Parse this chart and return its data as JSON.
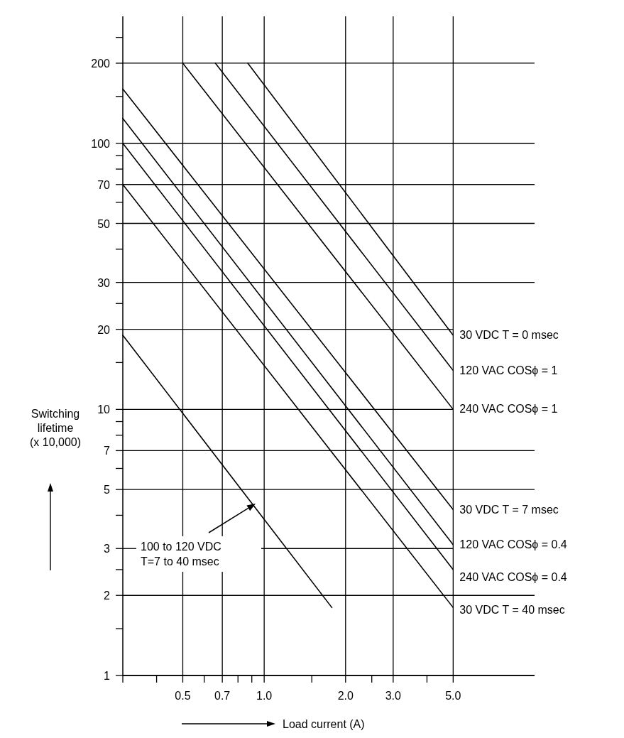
{
  "chart_data": {
    "type": "line",
    "xlabel": "Load current (A)",
    "ylabel": "Switching\nlifetime\n(x 10,000)",
    "log": "xy",
    "grid": true,
    "marker": "none",
    "line_style": "solid",
    "xlim": [
      0.3,
      10
    ],
    "ylim": [
      1,
      300
    ],
    "xticks": [
      {
        "value": 0.3,
        "label": null
      },
      {
        "value": 0.4,
        "label": null
      },
      0.5,
      {
        "value": 0.6,
        "label": null
      },
      0.7,
      {
        "value": 0.8,
        "label": null
      },
      {
        "value": 0.9,
        "label": null
      },
      {
        "value": 1,
        "label": "1.0"
      },
      {
        "value": 1.5,
        "label": null
      },
      {
        "value": 2,
        "label": "2.0"
      },
      {
        "value": 2.5,
        "label": null
      },
      {
        "value": 3,
        "label": "3.0"
      },
      {
        "value": 4,
        "label": null
      },
      {
        "value": 5,
        "label": "5.0"
      }
    ],
    "yticks": [
      1,
      {
        "value": 1.5,
        "label": null
      },
      2,
      {
        "value": 2.5,
        "label": null
      },
      3,
      {
        "value": 4,
        "label": null
      },
      5,
      {
        "value": 6,
        "label": null
      },
      7,
      {
        "value": 8,
        "label": null
      },
      {
        "value": 9,
        "label": null
      },
      10,
      {
        "value": 15,
        "label": null
      },
      20,
      {
        "value": 25,
        "label": null
      },
      30,
      {
        "value": 40,
        "label": null
      },
      50,
      {
        "value": 60,
        "label": null
      },
      70,
      {
        "value": 80,
        "label": null
      },
      {
        "value": 90,
        "label": null
      },
      100,
      {
        "value": 150,
        "label": null
      },
      200,
      {
        "value": 250,
        "label": null
      }
    ],
    "series": [
      {
        "name": "30 VDC T = 0 msec",
        "color": "#000000",
        "x": [
          0.87,
          5
        ],
        "values": [
          200,
          19
        ]
      },
      {
        "name": "120 VAC COSϕ = 1",
        "color": "#000000",
        "x": [
          0.66,
          5
        ],
        "values": [
          200,
          14
        ]
      },
      {
        "name": "240 VAC COSϕ = 1",
        "color": "#000000",
        "x": [
          0.5,
          5
        ],
        "values": [
          200,
          10
        ]
      },
      {
        "name": "30 VDC T = 7 msec",
        "color": "#000000",
        "x": [
          0.3,
          5
        ],
        "values": [
          160,
          4.2
        ]
      },
      {
        "name": "120 VAC COSϕ = 0.4",
        "color": "#000000",
        "x": [
          0.3,
          5
        ],
        "values": [
          124,
          3.1
        ]
      },
      {
        "name": "240 VAC COSϕ = 0.4",
        "color": "#000000",
        "x": [
          0.3,
          5
        ],
        "values": [
          100,
          2.5
        ]
      },
      {
        "name": "30 VDC T = 40 msec",
        "color": "#000000",
        "x": [
          0.3,
          5
        ],
        "values": [
          70,
          1.8
        ]
      },
      {
        "color": "#000000",
        "x": [
          0.3,
          1.78
        ],
        "values": [
          19,
          1.8
        ]
      }
    ],
    "annotations": [
      "100 to 120 VDC\nT=7 to 40 msec"
    ]
  }
}
